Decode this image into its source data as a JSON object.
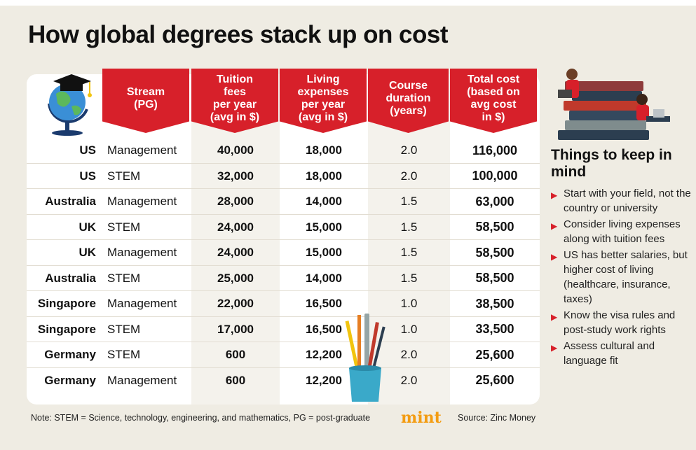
{
  "title": "How global degrees stack up on cost",
  "headers": [
    {
      "label": "Stream\n(PG)"
    },
    {
      "label": "Tuition\nfees\nper year\n(avg in $)"
    },
    {
      "label": "Living\nexpenses\nper year\n(avg in $)"
    },
    {
      "label": "Course\nduration\n(years)"
    },
    {
      "label": "Total cost\n(based on\navg cost\nin $)"
    }
  ],
  "rows": [
    {
      "country": "US",
      "stream": "Management",
      "tuition": "40,000",
      "living": "18,000",
      "duration": "2.0",
      "total": "116,000"
    },
    {
      "country": "US",
      "stream": "STEM",
      "tuition": "32,000",
      "living": "18,000",
      "duration": "2.0",
      "total": "100,000"
    },
    {
      "country": "Australia",
      "stream": "Management",
      "tuition": "28,000",
      "living": "14,000",
      "duration": "1.5",
      "total": "63,000"
    },
    {
      "country": "UK",
      "stream": "STEM",
      "tuition": "24,000",
      "living": "15,000",
      "duration": "1.5",
      "total": "58,500"
    },
    {
      "country": "UK",
      "stream": "Management",
      "tuition": "24,000",
      "living": "15,000",
      "duration": "1.5",
      "total": "58,500"
    },
    {
      "country": "Australia",
      "stream": "STEM",
      "tuition": "25,000",
      "living": "14,000",
      "duration": "1.5",
      "total": "58,500"
    },
    {
      "country": "Singapore",
      "stream": "Management",
      "tuition": "22,000",
      "living": "16,500",
      "duration": "1.0",
      "total": "38,500"
    },
    {
      "country": "Singapore",
      "stream": "STEM",
      "tuition": "17,000",
      "living": "16,500",
      "duration": "1.0",
      "total": "33,500"
    },
    {
      "country": "Germany",
      "stream": "STEM",
      "tuition": "600",
      "living": "12,200",
      "duration": "2.0",
      "total": "25,600"
    },
    {
      "country": "Germany",
      "stream": "Management",
      "tuition": "600",
      "living": "12,200",
      "duration": "2.0",
      "total": "25,600"
    }
  ],
  "note": "Note: STEM = Science, technology, engineering, and mathematics, PG = post-graduate",
  "brand": "mint",
  "source": "Source: Zinc Money",
  "sidebar": {
    "title": "Things to keep in mind",
    "tips": [
      "Start with your field, not the country or university",
      "Consider living expenses along with tuition fees",
      "US has better salaries, but higher cost of living (healthcare, insurance, taxes)",
      "Know the visa rules and post-study work rights",
      "Assess cultural and language fit"
    ]
  },
  "colors": {
    "accent": "#d7202a",
    "brand": "#f39c12",
    "background": "#efece3"
  }
}
